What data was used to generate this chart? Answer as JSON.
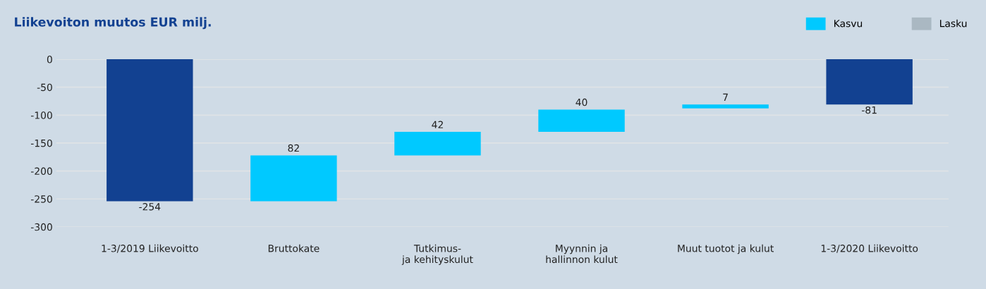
{
  "chart_data": {
    "type": "bar",
    "title": "Liikevoiton muutos EUR milj.",
    "categories": [
      "1-3/2019 Liikevoitto",
      "Bruttokate",
      "Tutkimus-\nja kehityskulut",
      "Myynnin ja\nhallinnon kulut",
      "Muut tuotot ja kulut",
      "1-3/2020 Liikevoitto"
    ],
    "series": [
      {
        "color": "#124191",
        "values": [
          -254,
          null,
          null,
          null,
          null,
          -81
        ],
        "base": [
          0,
          null,
          null,
          null,
          null,
          0
        ]
      },
      {
        "name": "Kasvu",
        "color": "#00c9ff",
        "values": [
          null,
          82,
          42,
          40,
          7,
          null
        ],
        "base": [
          null,
          -254,
          -172,
          -130,
          -88,
          null
        ]
      },
      {
        "name": "Lasku",
        "color": "#aab8c2",
        "values": [
          null,
          null,
          null,
          null,
          null,
          null
        ]
      }
    ],
    "ylim": [
      -300,
      0
    ],
    "yticks": [
      0,
      -50,
      -100,
      -150,
      -200,
      -250,
      -300
    ],
    "grid": "y",
    "legend": "top right",
    "data_labels": true
  }
}
